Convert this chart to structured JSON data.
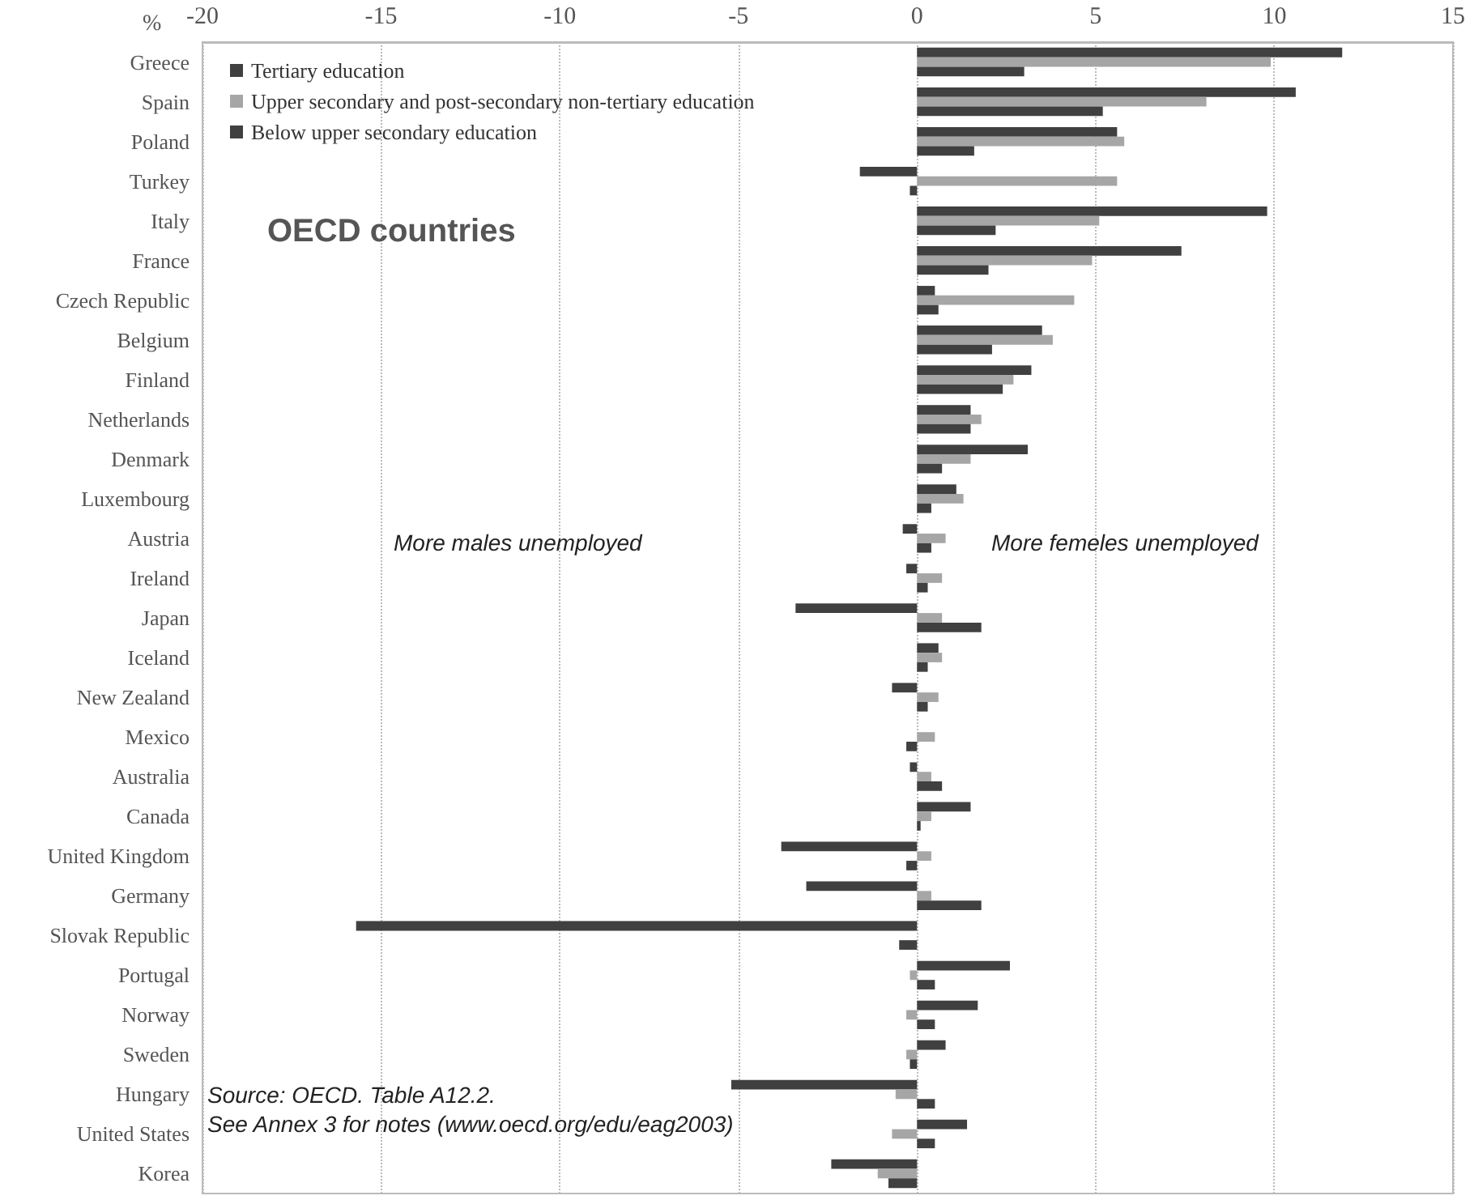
{
  "chart_data": {
    "type": "bar",
    "orientation": "horizontal",
    "xlabel": "%",
    "categories": [
      "Greece",
      "Spain",
      "Poland",
      "Turkey",
      "Italy",
      "France",
      "Czech Republic",
      "Belgium",
      "Finland",
      "Netherlands",
      "Denmark",
      "Luxembourg",
      "Austria",
      "Ireland",
      "Japan",
      "Iceland",
      "New Zealand",
      "Mexico",
      "Australia",
      "Canada",
      "United Kingdom",
      "Germany",
      "Slovak Republic",
      "Portugal",
      "Norway",
      "Sweden",
      "Hungary",
      "United States",
      "Korea"
    ],
    "series": [
      {
        "name": "Tertiary education",
        "color": "#404040",
        "values": [
          11.9,
          10.6,
          5.6,
          -1.6,
          9.8,
          7.4,
          0.5,
          3.5,
          3.2,
          1.5,
          3.1,
          1.1,
          -0.4,
          -0.3,
          -3.4,
          0.6,
          -0.7,
          0,
          -0.2,
          1.5,
          -3.8,
          -3.1,
          -15.7,
          2.6,
          1.7,
          0.8,
          -5.2,
          1.4,
          -2.4
        ]
      },
      {
        "name": "Upper secondary and post-secondary non-tertiary education",
        "color": "#a6a6a6",
        "values": [
          9.9,
          8.1,
          5.8,
          5.6,
          5.1,
          4.9,
          4.4,
          3.8,
          2.7,
          1.8,
          1.5,
          1.3,
          0.8,
          0.7,
          0.7,
          0.7,
          0.6,
          0.5,
          0.4,
          0.4,
          0.4,
          0.4,
          0,
          -0.2,
          -0.3,
          -0.3,
          -0.6,
          -0.7,
          -1.1
        ]
      },
      {
        "name": "Below upper secondary education",
        "color": "#404040",
        "values": [
          3.0,
          5.2,
          1.6,
          -0.2,
          2.2,
          2.0,
          0.6,
          2.1,
          2.4,
          1.5,
          0.7,
          0.4,
          0.4,
          0.3,
          1.8,
          0.3,
          0.3,
          -0.3,
          0.7,
          0.1,
          -0.3,
          1.8,
          -0.5,
          0.5,
          0.5,
          -0.2,
          0.5,
          0.5,
          -0.8
        ]
      }
    ],
    "xlim": [
      -20,
      15
    ],
    "xticks": [
      -20,
      -15,
      -10,
      -5,
      0,
      5,
      10,
      15
    ],
    "grid": "x",
    "legend": "top left",
    "annotations": [
      "OECD countries",
      "More males unemployed",
      "More femeles unemployed",
      "Source: OECD. Table A12.2.",
      "See Annex 3 for notes (www.oecd.org/edu/eag2003)"
    ]
  }
}
